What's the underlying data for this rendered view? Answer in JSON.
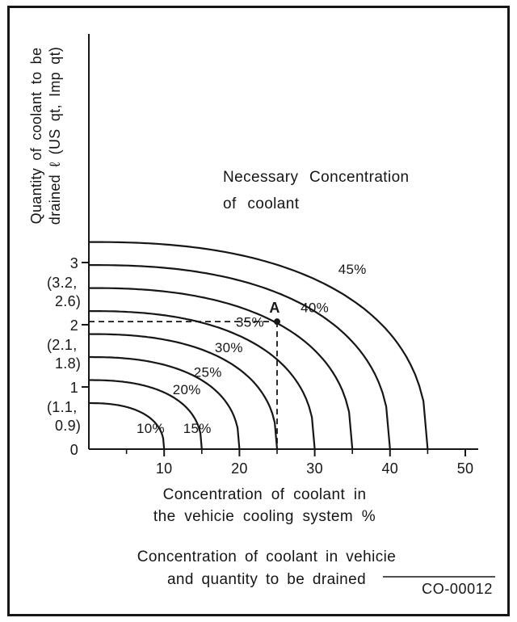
{
  "figure": {
    "code": "CO-00012",
    "caption": [
      "Concentration of coolant in vehicie",
      "and quantity to be drained"
    ]
  },
  "chart_data": {
    "type": "line",
    "annotation": [
      "Necessary Concentration",
      "of coolant"
    ],
    "y_axis_label": [
      "Quantity of coolant to be",
      "drained ℓ (US qt, Imp qt)"
    ],
    "x_axis_label": [
      "Concentration of coolant in",
      "the vehicie cooling system %"
    ],
    "xlim": [
      0,
      50
    ],
    "ylim": [
      0,
      4
    ],
    "x_major_ticks": [
      10,
      20,
      30,
      40,
      50
    ],
    "x_minor_ticks": [
      5,
      15,
      25,
      35,
      45
    ],
    "y_ticks": [
      {
        "value": 0,
        "label": "0",
        "conversion": null
      },
      {
        "value": 1,
        "label": "1",
        "conversion": [
          "(1.1,",
          "0.9)"
        ]
      },
      {
        "value": 2,
        "label": "2",
        "conversion": [
          "(2.1,",
          "1.8)"
        ]
      },
      {
        "value": 3,
        "label": "3",
        "conversion": [
          "(3.2,",
          "2.6)"
        ]
      }
    ],
    "series": [
      {
        "label": "10%",
        "concentration": 10,
        "y_intercept": 0.74,
        "x_intercept": 10,
        "label_pos": [
          8.2,
          0.26
        ]
      },
      {
        "label": "15%",
        "concentration": 15,
        "y_intercept": 1.11,
        "x_intercept": 15,
        "label_pos": [
          14.4,
          0.26
        ]
      },
      {
        "label": "20%",
        "concentration": 20,
        "y_intercept": 1.48,
        "x_intercept": 20,
        "label_pos": [
          13.0,
          0.88
        ]
      },
      {
        "label": "25%",
        "concentration": 25,
        "y_intercept": 1.85,
        "x_intercept": 25,
        "label_pos": [
          15.8,
          1.16
        ]
      },
      {
        "label": "30%",
        "concentration": 30,
        "y_intercept": 2.22,
        "x_intercept": 30,
        "label_pos": [
          18.6,
          1.56
        ]
      },
      {
        "label": "35%",
        "concentration": 35,
        "y_intercept": 2.59,
        "x_intercept": 35,
        "label_pos": [
          21.4,
          1.97
        ]
      },
      {
        "label": "40%",
        "concentration": 40,
        "y_intercept": 2.96,
        "x_intercept": 40,
        "label_pos": [
          30.0,
          2.2
        ]
      },
      {
        "label": "45%",
        "concentration": 45,
        "y_intercept": 3.33,
        "x_intercept": 45,
        "label_pos": [
          35.0,
          2.82
        ]
      }
    ],
    "marked_point": {
      "label": "A",
      "x": 25,
      "y": 2.05
    },
    "line_color": "#161616",
    "background": "#ffffff"
  }
}
